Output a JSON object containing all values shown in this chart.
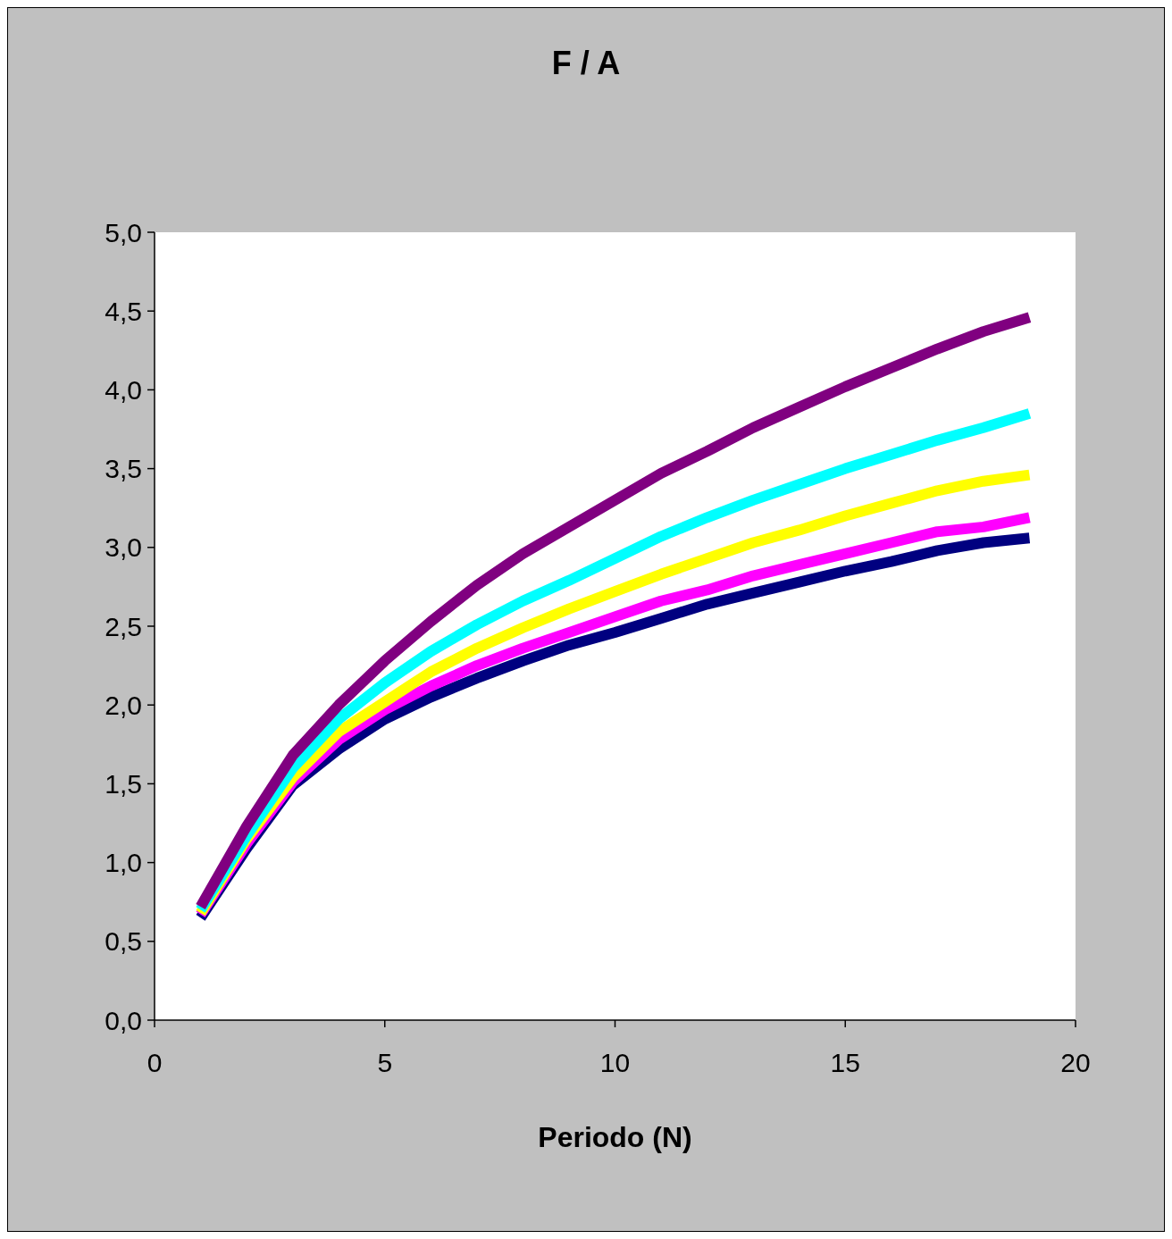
{
  "chart_data": {
    "type": "line",
    "title": "F / A",
    "xlabel": "Periodo (N)",
    "x": [
      1,
      2,
      3,
      4,
      5,
      6,
      7,
      8,
      9,
      10,
      11,
      12,
      13,
      14,
      15,
      16,
      17,
      18,
      19
    ],
    "series": [
      {
        "color": "#000080",
        "values": [
          0.65,
          1.09,
          1.49,
          1.72,
          1.91,
          2.05,
          2.17,
          2.28,
          2.38,
          2.46,
          2.55,
          2.64,
          2.71,
          2.78,
          2.85,
          2.91,
          2.98,
          3.03,
          3.06
        ]
      },
      {
        "color": "#ff00ff",
        "values": [
          0.67,
          1.12,
          1.51,
          1.78,
          1.97,
          2.12,
          2.25,
          2.36,
          2.46,
          2.56,
          2.66,
          2.73,
          2.82,
          2.89,
          2.96,
          3.03,
          3.1,
          3.13,
          3.19
        ]
      },
      {
        "color": "#ffff00",
        "values": [
          0.68,
          1.15,
          1.54,
          1.83,
          2.02,
          2.21,
          2.36,
          2.49,
          2.61,
          2.72,
          2.83,
          2.93,
          3.03,
          3.11,
          3.2,
          3.28,
          3.36,
          3.42,
          3.46
        ]
      },
      {
        "color": "#00ffff",
        "values": [
          0.7,
          1.17,
          1.6,
          1.91,
          2.14,
          2.34,
          2.51,
          2.66,
          2.79,
          2.93,
          3.07,
          3.19,
          3.3,
          3.4,
          3.5,
          3.59,
          3.68,
          3.76,
          3.85
        ]
      },
      {
        "color": "#800080",
        "values": [
          0.72,
          1.23,
          1.68,
          2.0,
          2.28,
          2.53,
          2.76,
          2.96,
          3.13,
          3.3,
          3.47,
          3.61,
          3.76,
          3.89,
          4.02,
          4.14,
          4.26,
          4.37,
          4.46
        ]
      }
    ],
    "xlim": [
      0,
      20
    ],
    "xticks": [
      0,
      5,
      10,
      15,
      20
    ],
    "ylim": [
      0,
      5
    ],
    "yticks": [
      {
        "value": 0,
        "label": "0,0"
      },
      {
        "value": 0.5,
        "label": "0,5"
      },
      {
        "value": 1,
        "label": "1,0"
      },
      {
        "value": 1.5,
        "label": "1,5"
      },
      {
        "value": 2,
        "label": "2,0"
      },
      {
        "value": 2.5,
        "label": "2,5"
      },
      {
        "value": 3,
        "label": "3,0"
      },
      {
        "value": 3.5,
        "label": "3,5"
      },
      {
        "value": 4,
        "label": "4,0"
      },
      {
        "value": 4.5,
        "label": "4,5"
      },
      {
        "value": 5,
        "label": "5,0"
      }
    ],
    "grid": false,
    "marker": "none",
    "line_style": "solid"
  }
}
